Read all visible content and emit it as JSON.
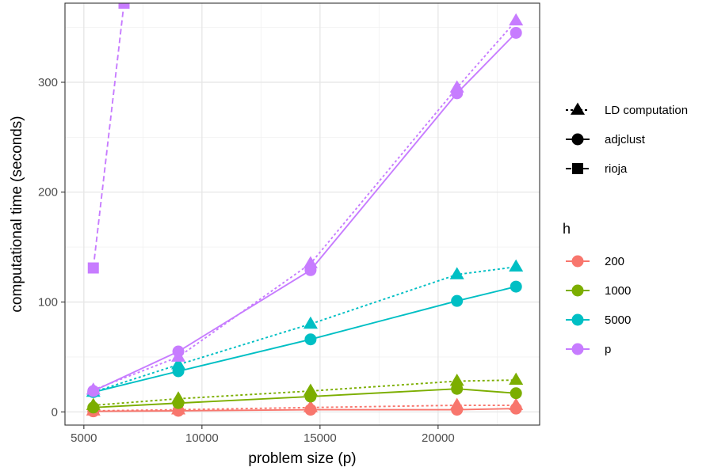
{
  "chart_data": {
    "type": "line",
    "xlabel": "problem size (p)",
    "ylabel": "computational time (seconds)",
    "xlim": [
      4200,
      24300
    ],
    "ylim": [
      -12,
      372
    ],
    "x_ticks": [
      5000,
      10000,
      15000,
      20000
    ],
    "x_tick_labels": [
      "5000",
      "10000",
      "15000",
      "20000"
    ],
    "y_ticks": [
      0,
      100,
      200,
      300
    ],
    "y_tick_labels": [
      "0",
      "100",
      "200",
      "300"
    ],
    "x_minor_ticks": [
      7500,
      12500,
      17500,
      22500
    ],
    "y_minor_ticks": [
      50,
      150,
      250,
      350
    ],
    "grid": true,
    "x": [
      5400,
      9000,
      14600,
      20800,
      23300
    ],
    "shape_legend": [
      {
        "label": "LD computation",
        "shape": "triangle",
        "linetype": "dotted"
      },
      {
        "label": "adjclust",
        "shape": "circle",
        "linetype": "solid"
      },
      {
        "label": "rioja",
        "shape": "square",
        "linetype": "dashed"
      }
    ],
    "color_legend_title": "h",
    "color_legend": [
      {
        "label": " 200",
        "color": "#F8766D"
      },
      {
        "label": " 1000",
        "color": "#7CAE00"
      },
      {
        "label": " 5000",
        "color": "#00BFC4"
      },
      {
        "label": "p",
        "color": "#C77CFF"
      }
    ],
    "series": [
      {
        "h": " 200",
        "method": "LD computation",
        "color": "#F8766D",
        "values": [
          1,
          2,
          4,
          6,
          6
        ]
      },
      {
        "h": " 200",
        "method": "adjclust",
        "color": "#F8766D",
        "values": [
          0.5,
          1,
          2,
          2,
          3
        ]
      },
      {
        "h": " 1000",
        "method": "LD computation",
        "color": "#7CAE00",
        "values": [
          6,
          12,
          19,
          28,
          29
        ]
      },
      {
        "h": " 1000",
        "method": "adjclust",
        "color": "#7CAE00",
        "values": [
          4,
          8,
          14,
          21,
          17
        ]
      },
      {
        "h": " 5000",
        "method": "LD computation",
        "color": "#00BFC4",
        "values": [
          18,
          43,
          80,
          125,
          132
        ]
      },
      {
        "h": " 5000",
        "method": "adjclust",
        "color": "#00BFC4",
        "values": [
          18,
          37,
          66,
          101,
          114
        ]
      },
      {
        "h": "p",
        "method": "LD computation",
        "color": "#C77CFF",
        "values": [
          20,
          50,
          135,
          295,
          356
        ]
      },
      {
        "h": "p",
        "method": "adjclust",
        "color": "#C77CFF",
        "values": [
          19,
          55,
          129,
          290,
          345
        ]
      },
      {
        "h": "p",
        "method": "rioja",
        "color": "#C77CFF",
        "x": [
          5400,
          6700
        ],
        "values": [
          131,
          372
        ]
      }
    ]
  }
}
